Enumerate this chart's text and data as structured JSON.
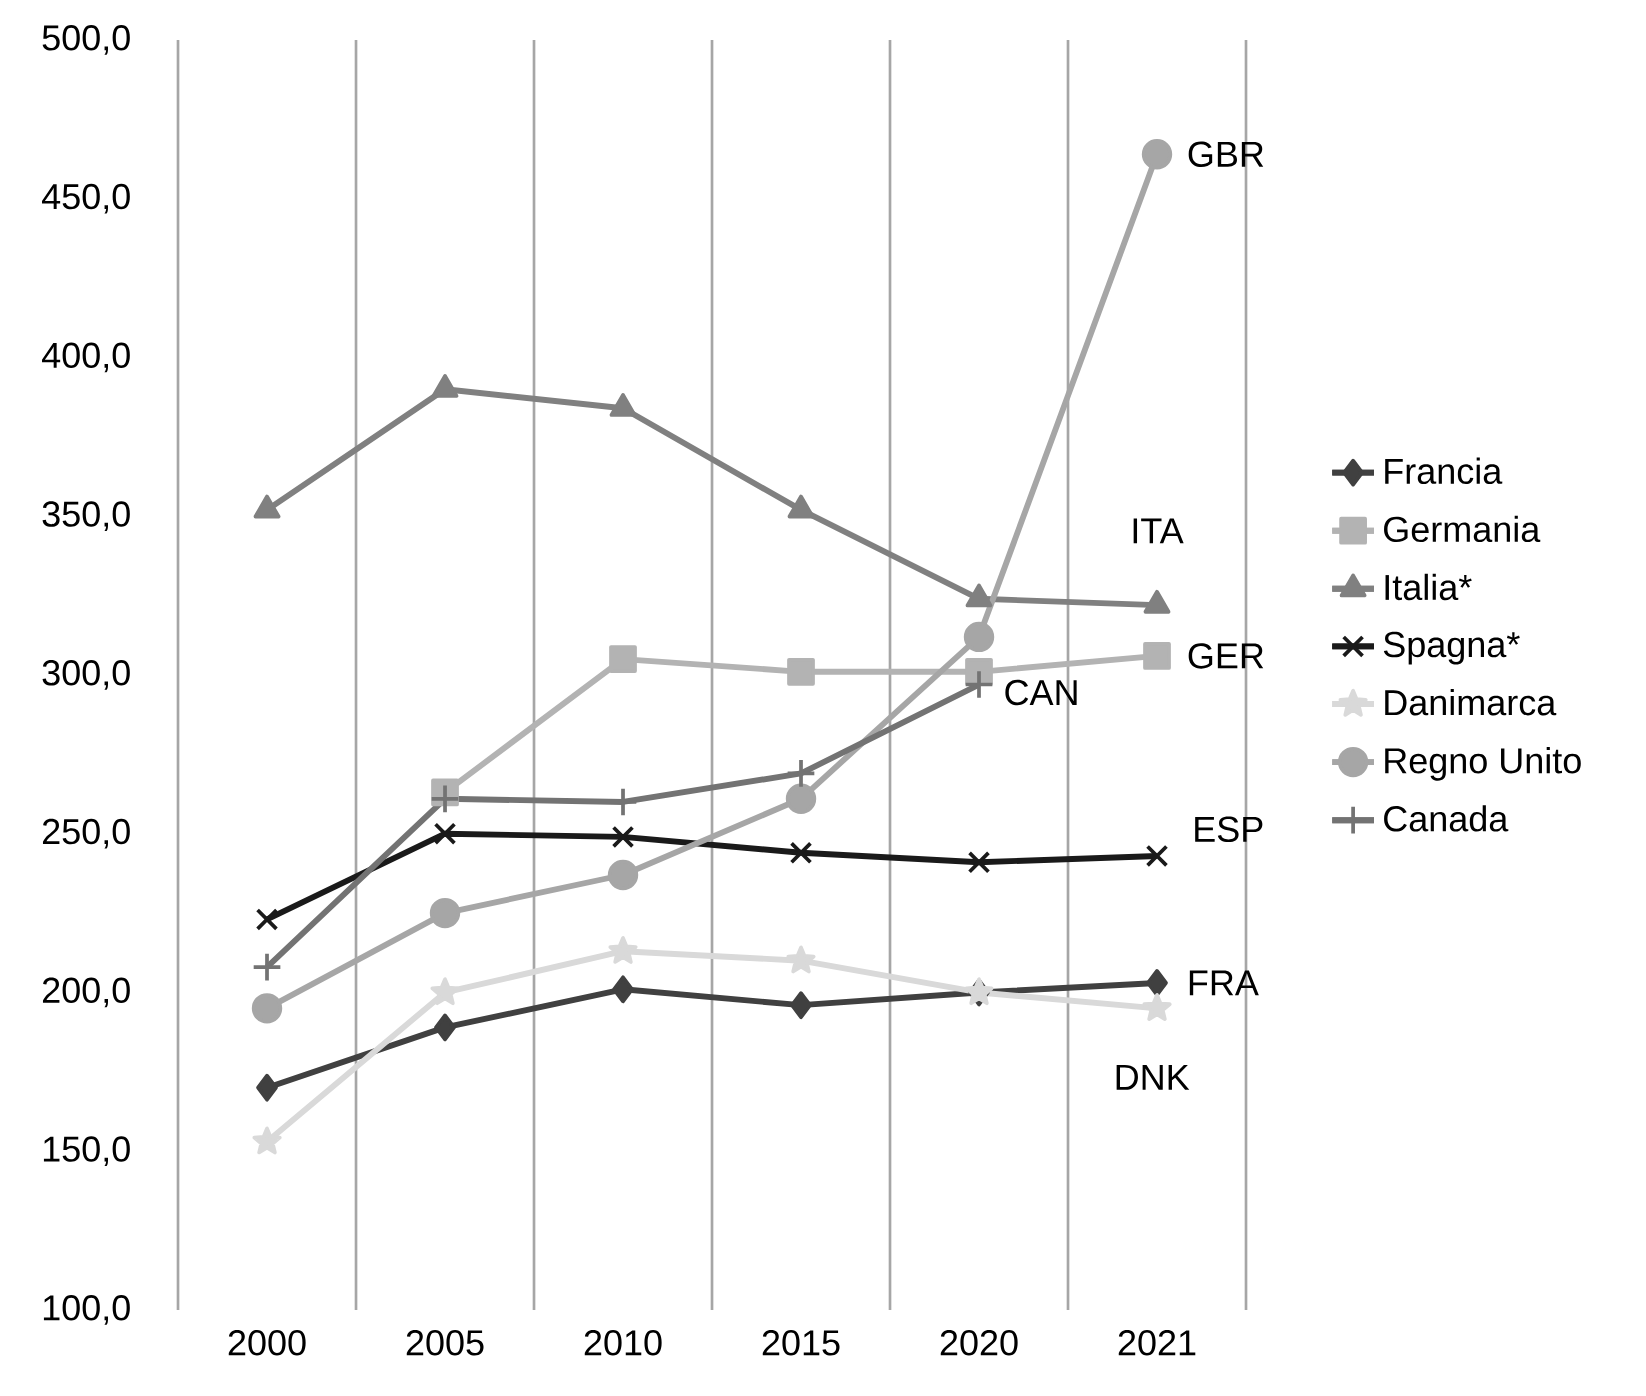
{
  "chart_data": {
    "type": "line",
    "categories": [
      "2000",
      "2005",
      "2010",
      "2015",
      "2020",
      "2021"
    ],
    "series": [
      {
        "name": "Francia",
        "color": "#404040",
        "marker": "diamond",
        "values": [
          170,
          189,
          201,
          196,
          200,
          203
        ]
      },
      {
        "name": "Germania",
        "color": "#b3b3b3",
        "marker": "square",
        "values": [
          null,
          263,
          305,
          301,
          301,
          306
        ]
      },
      {
        "name": "Italia*",
        "color": "#808080",
        "marker": "triangle",
        "values": [
          352,
          390,
          384,
          352,
          324,
          322
        ]
      },
      {
        "name": "Spagna*",
        "color": "#1a1a1a",
        "marker": "cross",
        "values": [
          223,
          250,
          249,
          244,
          241,
          243
        ]
      },
      {
        "name": "Danimarca",
        "color": "#d9d9d9",
        "marker": "star",
        "values": [
          153,
          200,
          213,
          210,
          200,
          195
        ]
      },
      {
        "name": "Regno Unito",
        "color": "#a6a6a6",
        "marker": "circle",
        "values": [
          195,
          225,
          237,
          261,
          312,
          464
        ]
      },
      {
        "name": "Canada",
        "color": "#737373",
        "marker": "plus",
        "values": [
          208,
          261,
          260,
          269,
          297,
          null
        ]
      }
    ],
    "ylim": [
      100,
      500
    ],
    "yticks": [
      {
        "value": 100,
        "label": "100,0"
      },
      {
        "value": 150,
        "label": "150,0"
      },
      {
        "value": 200,
        "label": "200,0"
      },
      {
        "value": 250,
        "label": "250,0"
      },
      {
        "value": 300,
        "label": "300,0"
      },
      {
        "value": 350,
        "label": "350,0"
      },
      {
        "value": 400,
        "label": "400,0"
      },
      {
        "value": 450,
        "label": "450,0"
      },
      {
        "value": 500,
        "label": "500,0"
      }
    ],
    "grid": "x",
    "legend": "right",
    "annotations": [
      {
        "text": "GBR",
        "x": "2021",
        "y": 464
      },
      {
        "text": "ITA",
        "x": "2021",
        "y": 322
      },
      {
        "text": "GER",
        "x": "2021",
        "y": 306
      },
      {
        "text": "CAN",
        "x": "2020",
        "y": 297
      },
      {
        "text": "ESP",
        "x": "2021",
        "y": 243
      },
      {
        "text": "FRA",
        "x": "2021",
        "y": 203
      },
      {
        "text": "DNK",
        "x": "2021",
        "y": 195
      }
    ]
  }
}
